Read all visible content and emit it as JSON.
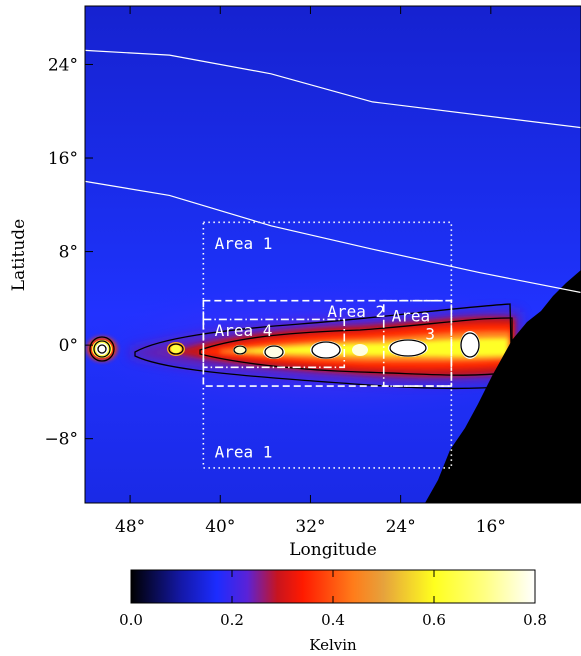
{
  "map": {
    "x_label": "Longitude",
    "y_label": "Latitude",
    "x_ticks": [
      {
        "value": 48,
        "label": "48°"
      },
      {
        "value": 40,
        "label": "40°"
      },
      {
        "value": 32,
        "label": "32°"
      },
      {
        "value": 24,
        "label": "24°"
      },
      {
        "value": 16,
        "label": "16°"
      }
    ],
    "y_ticks": [
      {
        "value": 24,
        "label": "24°"
      },
      {
        "value": 16,
        "label": "16°"
      },
      {
        "value": 8,
        "label": "8°"
      },
      {
        "value": 0,
        "label": "0°"
      },
      {
        "value": -8,
        "label": "−8°"
      }
    ],
    "x_range": [
      52,
      8
    ],
    "y_range": [
      -13.5,
      29
    ],
    "areas": [
      {
        "name": "Area 1",
        "style": "dotted",
        "lon": [
          41.5,
          19.5
        ],
        "lat": [
          -10.5,
          10.5
        ],
        "labels": [
          {
            "text": "Area 1",
            "lon": 40.5,
            "lat": 8.2
          },
          {
            "text": "Area 1",
            "lon": 40.5,
            "lat": -9.6
          }
        ]
      },
      {
        "name": "Area 2",
        "style": "dashed",
        "lon": [
          41.5,
          19.5
        ],
        "lat": [
          -3.5,
          3.8
        ],
        "labels": [
          {
            "text": "Area 2",
            "lon": 30.5,
            "lat": 2.4
          }
        ]
      },
      {
        "name": "Area 3",
        "style": "dashdot",
        "lon": [
          25.5,
          19.5
        ],
        "lat": [
          -3.5,
          3.8
        ],
        "labels": [
          {
            "text": "Area",
            "lon": 24.8,
            "lat": 2.0
          },
          {
            "text": "3",
            "lon": 21.8,
            "lat": 0.5
          }
        ]
      },
      {
        "name": "Area 4",
        "style": "dashdot",
        "lon": [
          41.5,
          29.0
        ],
        "lat": [
          -1.9,
          2.2
        ],
        "labels": [
          {
            "text": "Area 4",
            "lon": 40.5,
            "lat": 0.8
          }
        ]
      }
    ],
    "white_curves": [
      [
        [
          52,
          25.2
        ],
        [
          44.5,
          24.8
        ],
        [
          35.5,
          23.2
        ],
        [
          26.5,
          20.8
        ],
        [
          8,
          18.6
        ]
      ],
      [
        [
          52,
          14.0
        ],
        [
          44.5,
          12.8
        ],
        [
          35.5,
          10.2
        ],
        [
          26.5,
          8.2
        ],
        [
          17,
          6.2
        ],
        [
          8,
          4.5
        ]
      ]
    ]
  },
  "colorbar": {
    "title": "Kelvin",
    "min": 0.0,
    "max": 0.8,
    "ticks": [
      {
        "value": 0.0,
        "label": "0.0"
      },
      {
        "value": 0.2,
        "label": "0.2"
      },
      {
        "value": 0.4,
        "label": "0.4"
      },
      {
        "value": 0.6,
        "label": "0.6"
      },
      {
        "value": 0.8,
        "label": "0.8"
      }
    ],
    "stops": [
      {
        "v": 0.0,
        "color": "#000000"
      },
      {
        "v": 0.1,
        "color": "#1418a8"
      },
      {
        "v": 0.17,
        "color": "#1c2cff"
      },
      {
        "v": 0.23,
        "color": "#5a22d8"
      },
      {
        "v": 0.29,
        "color": "#c8141e"
      },
      {
        "v": 0.34,
        "color": "#ff1a00"
      },
      {
        "v": 0.44,
        "color": "#ff7c1a"
      },
      {
        "v": 0.5,
        "color": "#e6a23c"
      },
      {
        "v": 0.6,
        "color": "#ffff1e"
      },
      {
        "v": 0.7,
        "color": "#ffff82"
      },
      {
        "v": 0.8,
        "color": "#ffffff"
      }
    ]
  }
}
